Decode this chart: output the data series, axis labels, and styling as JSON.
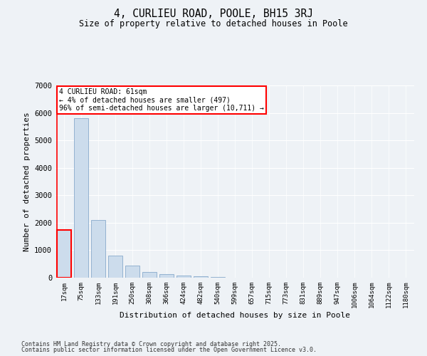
{
  "title1": "4, CURLIEU ROAD, POOLE, BH15 3RJ",
  "title2": "Size of property relative to detached houses in Poole",
  "xlabel": "Distribution of detached houses by size in Poole",
  "ylabel": "Number of detached properties",
  "categories": [
    "17sqm",
    "75sqm",
    "133sqm",
    "191sqm",
    "250sqm",
    "308sqm",
    "366sqm",
    "424sqm",
    "482sqm",
    "540sqm",
    "599sqm",
    "657sqm",
    "715sqm",
    "773sqm",
    "831sqm",
    "889sqm",
    "947sqm",
    "1006sqm",
    "1064sqm",
    "1122sqm",
    "1180sqm"
  ],
  "values": [
    1750,
    5800,
    2100,
    800,
    450,
    220,
    130,
    80,
    50,
    20,
    8,
    4,
    2,
    1,
    1,
    0,
    0,
    0,
    0,
    0,
    0
  ],
  "bar_color": "#ccdcec",
  "bar_edge_color": "#88aacc",
  "highlight_bar_index": 0,
  "highlight_edge_color": "red",
  "annotation_text": "4 CURLIEU ROAD: 61sqm\n← 4% of detached houses are smaller (497)\n96% of semi-detached houses are larger (10,711) →",
  "annotation_box_color": "white",
  "annotation_box_edge": "red",
  "ylim": [
    0,
    7000
  ],
  "yticks": [
    0,
    1000,
    2000,
    3000,
    4000,
    5000,
    6000,
    7000
  ],
  "background_color": "#eef2f6",
  "grid_color": "white",
  "footer1": "Contains HM Land Registry data © Crown copyright and database right 2025.",
  "footer2": "Contains public sector information licensed under the Open Government Licence v3.0."
}
